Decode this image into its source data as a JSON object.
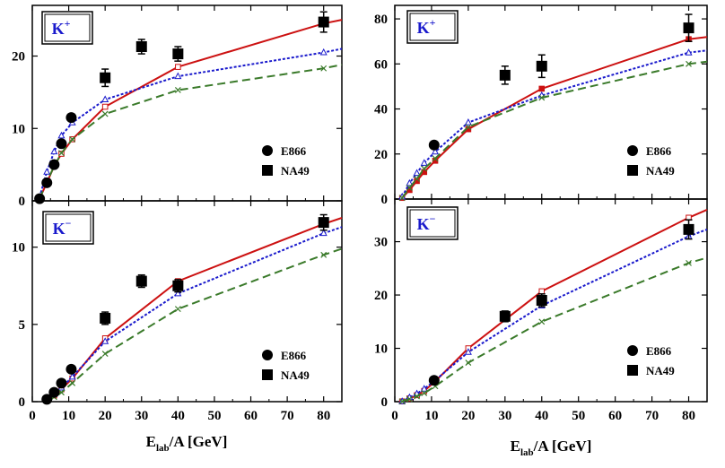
{
  "x_label": {
    "main": "E",
    "sub": "lab",
    "rest": "/A [GeV]"
  },
  "legend": {
    "circle": "E866",
    "square": "NA49"
  },
  "colors": {
    "solid": "#cc1111",
    "dotted": "#1a1acc",
    "dashed": "#3a7a2a",
    "marker": "#000000",
    "particle": "#1a1acc"
  },
  "chart_data": [
    {
      "type": "line",
      "panel": "top-left",
      "particle": {
        "base": "K",
        "sup": "+"
      },
      "xlim": [
        0,
        85
      ],
      "ylim": [
        0,
        27
      ],
      "xticks": [
        0,
        10,
        20,
        30,
        40,
        50,
        60,
        70,
        80
      ],
      "yticks": [
        0,
        10,
        20
      ],
      "show_x_tick_labels": false,
      "show_xlabel": false,
      "series": [
        {
          "name": "solid",
          "style": "solid",
          "marker": "open-square",
          "x": [
            2,
            4,
            6,
            8,
            11,
            20,
            40,
            80,
            85
          ],
          "y": [
            0.3,
            2.5,
            4.8,
            6.5,
            8.5,
            13.0,
            18.5,
            24.5,
            25.0
          ]
        },
        {
          "name": "dotted",
          "style": "dotted",
          "marker": "open-triangle",
          "x": [
            2,
            4,
            6,
            8,
            11,
            20,
            40,
            80,
            85
          ],
          "y": [
            0.5,
            4.0,
            6.8,
            9.0,
            10.8,
            14.0,
            17.2,
            20.5,
            21.0
          ]
        },
        {
          "name": "dashed",
          "style": "dashed",
          "marker": "cross",
          "x": [
            2,
            4,
            6,
            8,
            11,
            20,
            40,
            80,
            85
          ],
          "y": [
            0.3,
            2.6,
            4.8,
            6.6,
            8.5,
            12.0,
            15.3,
            18.3,
            18.8
          ]
        }
      ],
      "data_points": {
        "E866": {
          "x": [
            2,
            4,
            6,
            8,
            10.7
          ],
          "y": [
            0.3,
            2.5,
            5.0,
            7.9,
            11.5
          ],
          "err": [
            0,
            0,
            0,
            0,
            0
          ]
        },
        "NA49": {
          "x": [
            20,
            30,
            40,
            80
          ],
          "y": [
            17.0,
            21.3,
            20.3,
            24.7
          ],
          "err": [
            1.2,
            1.0,
            1.0,
            1.4
          ]
        }
      }
    },
    {
      "type": "line",
      "panel": "top-right",
      "particle": {
        "base": "K",
        "sup": "+"
      },
      "xlim": [
        0,
        85
      ],
      "ylim": [
        0,
        86
      ],
      "xticks": [
        0,
        10,
        20,
        30,
        40,
        50,
        60,
        70,
        80
      ],
      "yticks": [
        0,
        20,
        40,
        60,
        80
      ],
      "show_x_tick_labels": false,
      "show_xlabel": false,
      "series": [
        {
          "name": "solid",
          "style": "solid",
          "marker": "filled-square",
          "x": [
            2,
            4,
            6,
            8,
            11,
            20,
            40,
            80,
            85
          ],
          "y": [
            0.5,
            4,
            8,
            12,
            17,
            31,
            49,
            71,
            72
          ]
        },
        {
          "name": "dotted",
          "style": "dotted",
          "marker": "open-triangle",
          "x": [
            2,
            4,
            6,
            8,
            11,
            20,
            40,
            80,
            85
          ],
          "y": [
            1,
            7,
            11.5,
            16,
            21,
            34,
            46,
            65,
            66
          ]
        },
        {
          "name": "dashed",
          "style": "dashed",
          "marker": "cross",
          "x": [
            2,
            4,
            6,
            8,
            11,
            20,
            40,
            80,
            85
          ],
          "y": [
            0.5,
            5,
            9,
            13.5,
            18,
            32,
            45,
            60,
            61
          ]
        }
      ],
      "data_points": {
        "E866": {
          "x": [
            10.7
          ],
          "y": [
            24
          ],
          "err": [
            0
          ]
        },
        "NA49": {
          "x": [
            30,
            40,
            80
          ],
          "y": [
            55,
            59,
            76
          ],
          "err": [
            4,
            5,
            6
          ]
        }
      }
    },
    {
      "type": "line",
      "panel": "bottom-left",
      "particle": {
        "base": "K",
        "sup": "−"
      },
      "xlim": [
        0,
        85
      ],
      "ylim": [
        0,
        13
      ],
      "xticks": [
        0,
        10,
        20,
        30,
        40,
        50,
        60,
        70,
        80
      ],
      "xtick_labels": [
        "0",
        "10",
        "20",
        "30",
        "40",
        "50",
        "60",
        "70",
        "80"
      ],
      "yticks": [
        0,
        5,
        10
      ],
      "show_x_tick_labels": true,
      "show_xlabel": true,
      "series": [
        {
          "name": "solid",
          "style": "solid",
          "marker": "open-square",
          "x": [
            4,
            6,
            8,
            11,
            20,
            40,
            80,
            85
          ],
          "y": [
            0.1,
            0.4,
            0.8,
            1.5,
            4.1,
            7.8,
            11.5,
            11.9
          ]
        },
        {
          "name": "dotted",
          "style": "dotted",
          "marker": "open-triangle",
          "x": [
            4,
            6,
            8,
            11,
            20,
            40,
            80,
            85
          ],
          "y": [
            0.1,
            0.5,
            0.9,
            1.6,
            3.9,
            7.0,
            10.9,
            11.3
          ]
        },
        {
          "name": "dashed",
          "style": "dashed",
          "marker": "cross",
          "x": [
            4,
            6,
            8,
            11,
            20,
            40,
            80,
            85
          ],
          "y": [
            0.05,
            0.3,
            0.6,
            1.2,
            3.1,
            6.0,
            9.5,
            9.9
          ]
        }
      ],
      "data_points": {
        "E866": {
          "x": [
            4,
            6,
            8,
            10.7
          ],
          "y": [
            0.15,
            0.6,
            1.2,
            2.1
          ],
          "err": [
            0,
            0,
            0,
            0
          ]
        },
        "NA49": {
          "x": [
            20,
            30,
            40,
            80
          ],
          "y": [
            5.4,
            7.8,
            7.5,
            11.6
          ],
          "err": [
            0.4,
            0.4,
            0.4,
            0.5
          ]
        }
      }
    },
    {
      "type": "line",
      "panel": "bottom-right",
      "particle": {
        "base": "K",
        "sup": "−"
      },
      "xlim": [
        0,
        85
      ],
      "ylim": [
        0,
        38
      ],
      "xticks": [
        0,
        10,
        20,
        30,
        40,
        50,
        60,
        70,
        80
      ],
      "xtick_labels": [
        "0",
        "10",
        "20",
        "30",
        "40",
        "50",
        "60",
        "70",
        "80"
      ],
      "yticks": [
        0,
        10,
        20,
        30
      ],
      "show_x_tick_labels": true,
      "show_xlabel": true,
      "series": [
        {
          "name": "solid",
          "style": "solid",
          "marker": "open-square",
          "x": [
            2,
            4,
            6,
            8,
            11,
            20,
            40,
            80,
            85
          ],
          "y": [
            0.05,
            0.6,
            1.2,
            2.0,
            3.8,
            10.0,
            20.7,
            34.5,
            36.0
          ]
        },
        {
          "name": "dotted",
          "style": "dotted",
          "marker": "open-triangle",
          "x": [
            2,
            4,
            6,
            8,
            11,
            20,
            40,
            80,
            85
          ],
          "y": [
            0.05,
            0.8,
            1.5,
            2.4,
            4.0,
            9.3,
            18.0,
            31.0,
            32.3
          ]
        },
        {
          "name": "dashed",
          "style": "dashed",
          "marker": "cross",
          "x": [
            2,
            4,
            6,
            8,
            11,
            20,
            40,
            80,
            85
          ],
          "y": [
            0.03,
            0.5,
            1.0,
            1.6,
            2.9,
            7.3,
            15.0,
            26.0,
            27.0
          ]
        }
      ],
      "data_points": {
        "E866": {
          "x": [
            10.7
          ],
          "y": [
            4.0
          ],
          "err": [
            0
          ]
        },
        "NA49": {
          "x": [
            30,
            40,
            80
          ],
          "y": [
            16.0,
            19.0,
            32.3
          ],
          "err": [
            1.0,
            1.2,
            1.8
          ]
        }
      }
    }
  ]
}
